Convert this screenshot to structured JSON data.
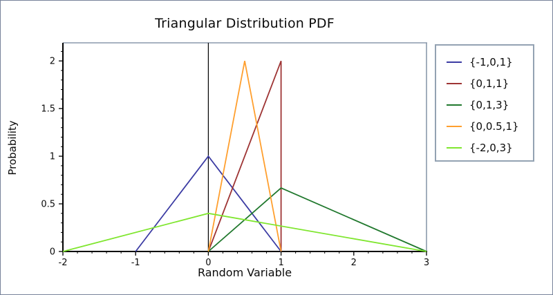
{
  "window": {
    "border_color": "#76839a",
    "frame_color": "#8a99ab",
    "legend_border_color": "#93a2b2",
    "axis_color": "#000000"
  },
  "chart_data": {
    "type": "line",
    "title": "Triangular Distribution PDF",
    "xlabel": "Random Variable",
    "ylabel": "Probability",
    "xlim": [
      -2,
      3
    ],
    "ylim": [
      0,
      2.19
    ],
    "xticks": [
      -2,
      -1,
      0,
      1,
      2,
      3
    ],
    "xtick_labels": [
      "-2",
      "-1",
      "0",
      "1",
      "2",
      "3"
    ],
    "yticks": [
      0,
      0.5,
      1,
      1.5,
      2
    ],
    "ytick_labels": [
      "0",
      "0.5",
      "1",
      "1.5",
      "2"
    ],
    "x_minor_step": 0.2,
    "y_minor_step": 0.1,
    "grid": false,
    "legend_position": "right-outside",
    "zero_line_x": 0,
    "series": [
      {
        "name": "{-1,0,1}",
        "color": "#3b3ba3",
        "points": [
          [
            -1,
            0
          ],
          [
            0,
            1
          ],
          [
            1,
            0
          ]
        ]
      },
      {
        "name": "{0,1,1}",
        "color": "#9e3434",
        "points": [
          [
            0,
            0
          ],
          [
            1,
            2
          ],
          [
            1,
            0
          ]
        ]
      },
      {
        "name": "{0,1,3}",
        "color": "#20782d",
        "points": [
          [
            0,
            0
          ],
          [
            1,
            0.6667
          ],
          [
            3,
            0
          ]
        ]
      },
      {
        "name": "{0,0.5,1}",
        "color": "#ff9f2e",
        "points": [
          [
            0,
            0
          ],
          [
            0.5,
            2
          ],
          [
            1,
            0
          ]
        ]
      },
      {
        "name": "{-2,0,3}",
        "color": "#7fe62e",
        "points": [
          [
            -2,
            0
          ],
          [
            0,
            0.4
          ],
          [
            3,
            0
          ]
        ]
      }
    ]
  }
}
